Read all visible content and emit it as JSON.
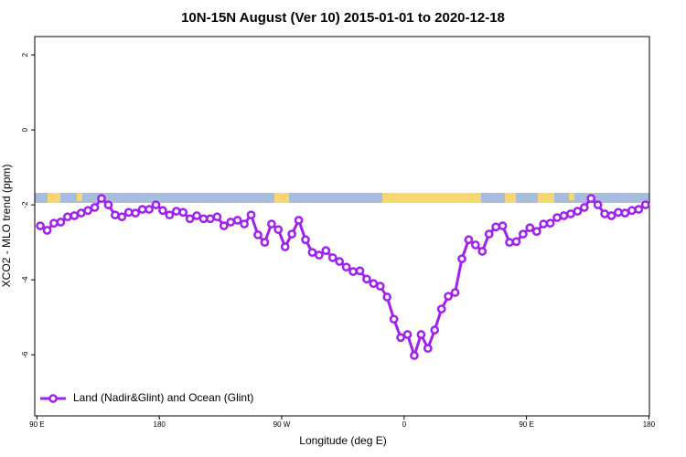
{
  "chart_data": {
    "type": "line",
    "title": "10N-15N August (Ver 10)   2015-01-01 to 2020-12-18",
    "x_label": "Longitude (deg E)",
    "y_label": "XCO2 - MLO trend (ppm)",
    "xlim": [
      88.4,
      540.4
    ],
    "ylim": [
      -7.63,
      2.49
    ],
    "xticks": [
      {
        "value": 90,
        "label": "90 E"
      },
      180,
      {
        "value": 270,
        "label": "90 W"
      },
      {
        "value": 360,
        "label": "0"
      },
      {
        "value": 450,
        "label": "90 E"
      },
      {
        "value": 540,
        "label": "180"
      }
    ],
    "yticks": [
      2,
      0,
      -2,
      -4,
      -6
    ],
    "legend": "bottom left",
    "series": [
      {
        "name": "Land (Nadir&Glint) and Ocean (Glint)",
        "color": "#a020f0",
        "x": [
          92.5,
          97.5,
          102.5,
          107.5,
          112.5,
          117.5,
          122.5,
          127.5,
          132.5,
          137.5,
          142.5,
          147.5,
          152.5,
          157.5,
          162.5,
          167.5,
          172.5,
          177.5,
          182.5,
          187.5,
          192.5,
          197.5,
          202.5,
          207.5,
          212.5,
          217.5,
          222.5,
          227.5,
          232.5,
          237.5,
          242.5,
          247.5,
          252.5,
          257.5,
          262.5,
          267.5,
          272.5,
          277.5,
          282.5,
          287.5,
          292.5,
          297.5,
          302.5,
          307.5,
          312.5,
          317.5,
          322.5,
          327.5,
          332.5,
          337.5,
          342.5,
          347.5,
          352.5,
          357.5,
          362.5,
          367.5,
          372.5,
          377.5,
          382.5,
          387.5,
          392.5,
          397.5,
          402.5,
          407.5,
          412.5,
          417.5,
          422.5,
          427.5,
          432.5,
          437.5,
          442.5,
          447.5,
          452.5,
          457.5,
          462.5,
          467.5,
          472.5,
          477.5,
          482.5,
          487.5,
          492.5,
          497.5,
          502.5,
          507.5,
          512.5,
          517.5,
          522.5,
          527.5,
          532.5,
          537.5
        ],
        "values": [
          -2.56,
          -2.68,
          -2.49,
          -2.46,
          -2.32,
          -2.29,
          -2.22,
          -2.15,
          -2.07,
          -1.83,
          -2.0,
          -2.27,
          -2.32,
          -2.2,
          -2.22,
          -2.12,
          -2.12,
          -2.0,
          -2.15,
          -2.27,
          -2.17,
          -2.2,
          -2.37,
          -2.29,
          -2.37,
          -2.37,
          -2.32,
          -2.56,
          -2.46,
          -2.41,
          -2.51,
          -2.27,
          -2.8,
          -3.0,
          -2.51,
          -2.66,
          -3.12,
          -2.78,
          -2.41,
          -2.93,
          -3.27,
          -3.34,
          -3.22,
          -3.41,
          -3.51,
          -3.66,
          -3.78,
          -3.76,
          -3.98,
          -4.1,
          -4.17,
          -4.46,
          -5.05,
          -5.54,
          -5.46,
          -6.02,
          -5.46,
          -5.83,
          -5.34,
          -4.78,
          -4.44,
          -4.34,
          -3.44,
          -2.93,
          -3.07,
          -3.24,
          -2.78,
          -2.59,
          -2.56,
          -3.0,
          -2.98,
          -2.78,
          -2.61,
          -2.71,
          -2.51,
          -2.49,
          -2.34,
          -2.29,
          -2.24,
          -2.17,
          -2.07,
          -1.83,
          -2.0,
          -2.24,
          -2.29,
          -2.2,
          -2.22,
          -2.15,
          -2.12,
          -2.0
        ]
      }
    ]
  }
}
